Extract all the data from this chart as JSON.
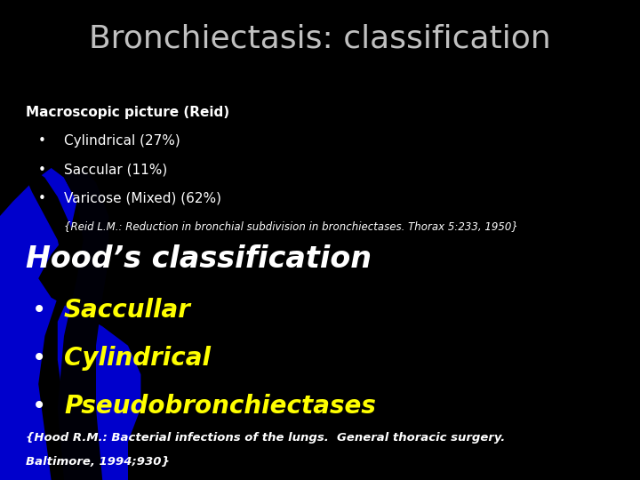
{
  "title": "Bronchiectasis: classification",
  "title_color": "#c0c0c0",
  "title_fontsize": 26,
  "background_color": "#000000",
  "section1_header": "Macroscopic picture (Reid)",
  "section1_header_color": "#ffffff",
  "section1_header_fontsize": 11,
  "section1_items": [
    "Cylindrical (27%)",
    "Saccular (11%)",
    "Varicose (Mixed) (62%)"
  ],
  "section1_items_color": "#ffffff",
  "section1_items_fontsize": 11,
  "section1_ref": "{Reid L.M.: Reduction in bronchial subdivision in bronchiectases. Thorax 5:233, 1950}",
  "section1_ref_color": "#ffffff",
  "section1_ref_fontsize": 8.5,
  "section2_header": "Hood’s classification",
  "section2_header_color": "#ffffff",
  "section2_header_fontsize": 24,
  "section2_items": [
    "Saccullar",
    "Cylindrical",
    "Pseudobronchiectases"
  ],
  "section2_items_color": "#ffff00",
  "section2_items_fontsize": 20,
  "section2_ref_line1": "{Hood R.M.: Bacterial infections of the lungs.  General thoracic surgery.",
  "section2_ref_line2": "Baltimore, 1994;930}",
  "section2_ref_color": "#ffffff",
  "section2_ref_fontsize": 9.5,
  "bullet_color_s1": "#ffffff",
  "bullet_color_s2": "#ffffff",
  "blue_shape_color": "#0000cc",
  "black_shape_color": "#000000"
}
